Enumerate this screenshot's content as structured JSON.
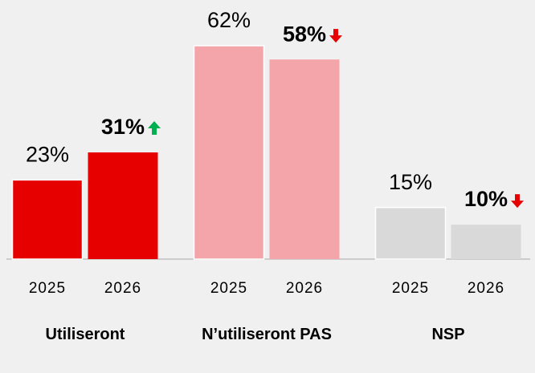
{
  "chart_data": {
    "type": "grouped-bar",
    "groups": [
      {
        "name": "Utiliseront",
        "color": "#e60000",
        "years": [
          "2025",
          "2026"
        ],
        "values": [
          23,
          31
        ],
        "value_labels": [
          "23%",
          "31%"
        ],
        "trend": [
          null,
          "up"
        ]
      },
      {
        "name": "N’utiliseront PAS",
        "color": "#f4a5a9",
        "years": [
          "2025",
          "2026"
        ],
        "values": [
          62,
          58
        ],
        "value_labels": [
          "62%",
          "58%"
        ],
        "trend": [
          null,
          "down"
        ]
      },
      {
        "name": "NSP",
        "color": "#d9d9d9",
        "years": [
          "2025",
          "2026"
        ],
        "values": [
          15,
          10
        ],
        "value_labels": [
          "15%",
          "10%"
        ],
        "trend": [
          null,
          "down"
        ]
      }
    ],
    "trend_colors": {
      "up": "#00b050",
      "down": "#e60000"
    }
  }
}
